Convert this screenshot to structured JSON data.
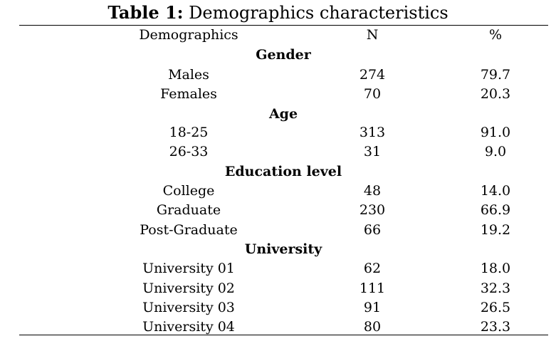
{
  "caption": {
    "label": "Table 1:",
    "text": "Demographics characteristics"
  },
  "header": {
    "name": "Demographics",
    "n": "N",
    "pct": "%"
  },
  "sections": [
    {
      "title": "Gender",
      "rows": [
        {
          "name": "Males",
          "n": "274",
          "pct": "79.7"
        },
        {
          "name": "Females",
          "n": "70",
          "pct": "20.3"
        }
      ]
    },
    {
      "title": "Age",
      "rows": [
        {
          "name": "18-25",
          "n": "313",
          "pct": "91.0"
        },
        {
          "name": "26-33",
          "n": "31",
          "pct": "9.0"
        }
      ]
    },
    {
      "title": "Education level",
      "rows": [
        {
          "name": "College",
          "n": "48",
          "pct": "14.0"
        },
        {
          "name": "Graduate",
          "n": "230",
          "pct": "66.9"
        },
        {
          "name": "Post-Graduate",
          "n": "66",
          "pct": "19.2"
        }
      ]
    },
    {
      "title": "University",
      "rows": [
        {
          "name": "University 01",
          "n": "62",
          "pct": "18.0"
        },
        {
          "name": "University 02",
          "n": "111",
          "pct": "32.3"
        },
        {
          "name": "University 03",
          "n": "91",
          "pct": "26.5"
        },
        {
          "name": "University 04",
          "n": "80",
          "pct": "23.3"
        }
      ]
    }
  ]
}
